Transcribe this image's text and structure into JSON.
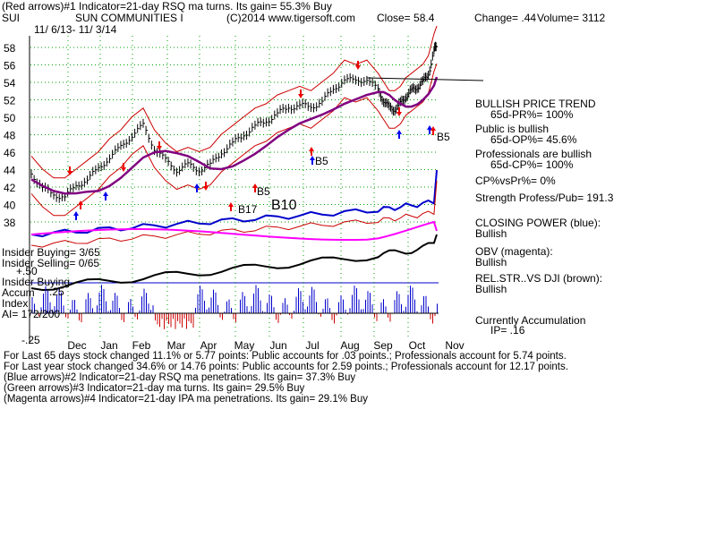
{
  "header": {
    "line1": "(Red arrows)#1 Indicator=21-day RSQ ma turns. Its gain= 55.3% Buy",
    "ticker": "SUI",
    "company": "SUN COMMUNITIES I",
    "copyright": "(C)2014 www.tigersoft.com",
    "close": "Close=  58.4",
    "change": "Change= .44",
    "volume": "Volume= 3112",
    "date_range": "11/ 6/13- 11/ 3/14"
  },
  "right_panel": {
    "bullish_trend": "BULLISH PRICE TREND",
    "pr": "65d-PR%= 100%",
    "public": "Public is bullish",
    "op": "65d-OP%= 45.6%",
    "professionals": "Professionals are bullish",
    "cp": "65d-CP%= 100%",
    "cp_vs_pr": "CP%vsPr%=  0%",
    "strength": "Strength Profess/Pub= 191.3",
    "closing_power": "CLOSING POWER (blue):",
    "closing_power_val": "Bullish",
    "obv": "OBV (magenta):",
    "obv_val": "Bullish",
    "relstr": "REL.STR..VS DJI (brown):",
    "relstr_val": "Bullish",
    "accum": "Currently Accumulation",
    "ip": "IP=  .16"
  },
  "left_labels": {
    "insider_buying": "Insider Buying= 3/65",
    "insider_selling": "Insider Selling= 0/65",
    "insider_buying2": "Insider Buying",
    "accum": "Accum",
    "index": "Index",
    "ai": "AI= 172/200",
    "plus50": "+.50",
    "plus25": ".25",
    "minus25": "-.25"
  },
  "footer": {
    "line1": "For Last 65 days stock changed  11.1% or  5.77 points:  Public accounts for  .03 points.;  Professionals account for  5.74 points.",
    "line2": "For Last year stock changed  34.6% or  14.76 points:  Public accounts for  2.59 points.;  Professionals account for  12.17 points.",
    "line3": "(Blue arrows)#2 Indicator=21-day RSQ ma penetrations. Its gain= 37.3% Buy",
    "line4": "(Green arrows)#3 Indicator=21-day ma turns. Its gain= 29.5% Buy",
    "line5": "(Magenta arrows)#4 Indicator=21-day IPA ma penetrations. Its gain= 29.1% Buy"
  },
  "colors": {
    "price": "#000000",
    "band": "#cc0000",
    "ma": "#800080",
    "closing_power": "#0000cc",
    "obv": "#ff00ff",
    "relstr": "#000000",
    "accum_pos": "#0000cc",
    "accum_neg": "#cc0000",
    "grid": "#00a000",
    "red_arrow": "#ee0000",
    "blue_arrow": "#0000ee"
  },
  "chart_data": {
    "type": "line",
    "ylim": [
      37,
      60
    ],
    "yticks": [
      38,
      40,
      42,
      44,
      46,
      48,
      50,
      52,
      54,
      56,
      58
    ],
    "month_labels": [
      "Dec",
      "Jan",
      "Feb",
      "Mar",
      "Apr",
      "May",
      "Jun",
      "Jul",
      "Aug",
      "Sep",
      "Oct",
      "Nov"
    ],
    "price": [
      [
        0,
        43.5
      ],
      [
        4,
        42.0
      ],
      [
        8,
        41.0
      ],
      [
        12,
        41.0
      ],
      [
        16,
        42.0
      ],
      [
        20,
        43.0
      ],
      [
        24,
        44.0
      ],
      [
        28,
        45.5
      ],
      [
        32,
        46.5
      ],
      [
        36,
        48.0
      ],
      [
        40,
        49.0
      ],
      [
        44,
        46.5
      ],
      [
        48,
        45.0
      ],
      [
        52,
        44.0
      ],
      [
        56,
        44.5
      ],
      [
        60,
        44.0
      ],
      [
        64,
        44.5
      ],
      [
        68,
        46.0
      ],
      [
        72,
        47.0
      ],
      [
        76,
        48.0
      ],
      [
        80,
        49.0
      ],
      [
        84,
        49.5
      ],
      [
        88,
        50.5
      ],
      [
        92,
        51.0
      ],
      [
        96,
        51.5
      ],
      [
        100,
        51.0
      ],
      [
        104,
        52.0
      ],
      [
        108,
        53.0
      ],
      [
        112,
        54.5
      ],
      [
        116,
        54.0
      ],
      [
        120,
        54.5
      ],
      [
        124,
        53.0
      ],
      [
        126,
        52.0
      ],
      [
        128,
        51.0
      ],
      [
        130,
        51.0
      ],
      [
        132,
        51.5
      ],
      [
        134,
        52.5
      ],
      [
        136,
        53.0
      ],
      [
        138,
        53.5
      ],
      [
        140,
        54.0
      ],
      [
        142,
        55.0
      ],
      [
        144,
        57.5
      ],
      [
        145,
        58.4
      ]
    ],
    "labels": [
      "B17",
      "B10",
      "B5",
      "B5",
      "B5"
    ]
  }
}
